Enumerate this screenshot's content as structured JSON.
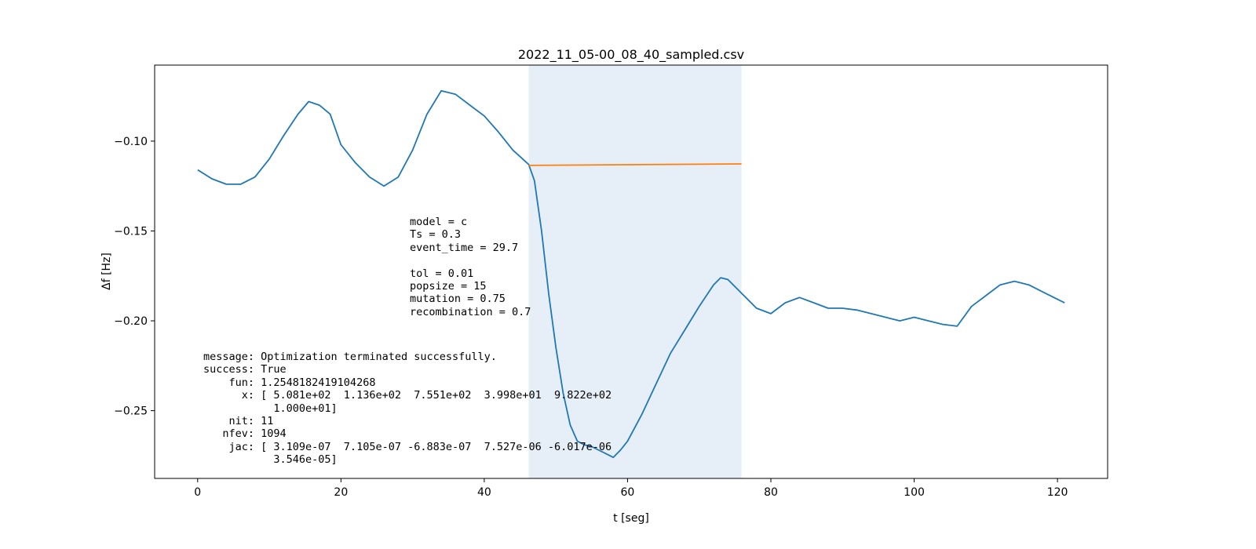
{
  "chart_data": {
    "type": "line",
    "title": "2022_11_05-00_08_40_sampled.csv",
    "xlabel": "t [seg]",
    "ylabel": "Δf [Hz]",
    "xlim": [
      -6,
      127
    ],
    "ylim": [
      -0.2877,
      -0.0577
    ],
    "xticks": [
      0,
      20,
      40,
      60,
      80,
      100,
      120
    ],
    "xtick_labels": [
      "0",
      "20",
      "40",
      "60",
      "80",
      "100",
      "120"
    ],
    "yticks": [
      -0.1,
      -0.15,
      -0.2,
      -0.25
    ],
    "ytick_labels": [
      "−0.10",
      "−0.15",
      "−0.20",
      "−0.25"
    ],
    "grid": false,
    "shaded_region": {
      "x": [
        46.2,
        75.9
      ],
      "color": "#e6eff7"
    },
    "series": [
      {
        "color": "#1f77b4",
        "x": [
          0,
          2,
          4,
          6,
          8,
          10,
          12,
          14,
          15.5,
          17,
          18.5,
          20,
          22,
          24,
          26,
          28,
          30,
          32,
          34,
          36,
          38,
          40,
          42,
          44,
          46.2,
          47,
          48,
          49,
          50,
          51,
          52,
          53,
          54,
          55,
          56,
          57,
          58,
          59,
          60,
          62,
          64,
          66,
          68,
          70,
          72,
          73,
          74,
          76,
          78,
          80,
          82,
          84,
          86,
          88,
          90,
          92,
          94,
          96,
          98,
          100,
          102,
          104,
          106,
          108,
          110,
          112,
          114,
          116,
          118,
          120,
          121
        ],
        "y": [
          -0.116,
          -0.121,
          -0.124,
          -0.124,
          -0.12,
          -0.11,
          -0.097,
          -0.085,
          -0.078,
          -0.08,
          -0.085,
          -0.102,
          -0.112,
          -0.12,
          -0.125,
          -0.12,
          -0.105,
          -0.085,
          -0.072,
          -0.074,
          -0.08,
          -0.086,
          -0.095,
          -0.105,
          -0.113,
          -0.122,
          -0.15,
          -0.185,
          -0.215,
          -0.24,
          -0.258,
          -0.267,
          -0.269,
          -0.27,
          -0.272,
          -0.274,
          -0.276,
          -0.272,
          -0.267,
          -0.252,
          -0.235,
          -0.218,
          -0.205,
          -0.192,
          -0.18,
          -0.176,
          -0.177,
          -0.185,
          -0.193,
          -0.196,
          -0.19,
          -0.187,
          -0.19,
          -0.193,
          -0.193,
          -0.194,
          -0.196,
          -0.198,
          -0.2,
          -0.198,
          -0.2,
          -0.202,
          -0.203,
          -0.192,
          -0.186,
          -0.18,
          -0.178,
          -0.18,
          -0.184,
          -0.188,
          -0.19
        ]
      },
      {
        "color": "#ff7f0e",
        "x": [
          46.2,
          75.9
        ],
        "y": [
          -0.1135,
          -0.1127
        ]
      }
    ],
    "annotations": [
      {
        "lines": [
          "model = c",
          "Ts = 0.3",
          "event_time = 29.7",
          "",
          "tol = 0.01",
          "popsize = 15",
          "mutation = 0.75",
          "recombination = 0.7"
        ]
      },
      {
        "lines": [
          "message: Optimization terminated successfully.",
          "success: True",
          "    fun: 1.2548182419104268",
          "      x: [ 5.081e+02  1.136e+02  7.551e+02  3.998e+01  9.822e+02",
          "           1.000e+01]",
          "    nit: 11",
          "   nfev: 1094",
          "    jac: [ 3.109e-07  7.105e-07 -6.883e-07  7.527e-06 -6.017e-06",
          "           3.546e-05]"
        ]
      }
    ]
  }
}
